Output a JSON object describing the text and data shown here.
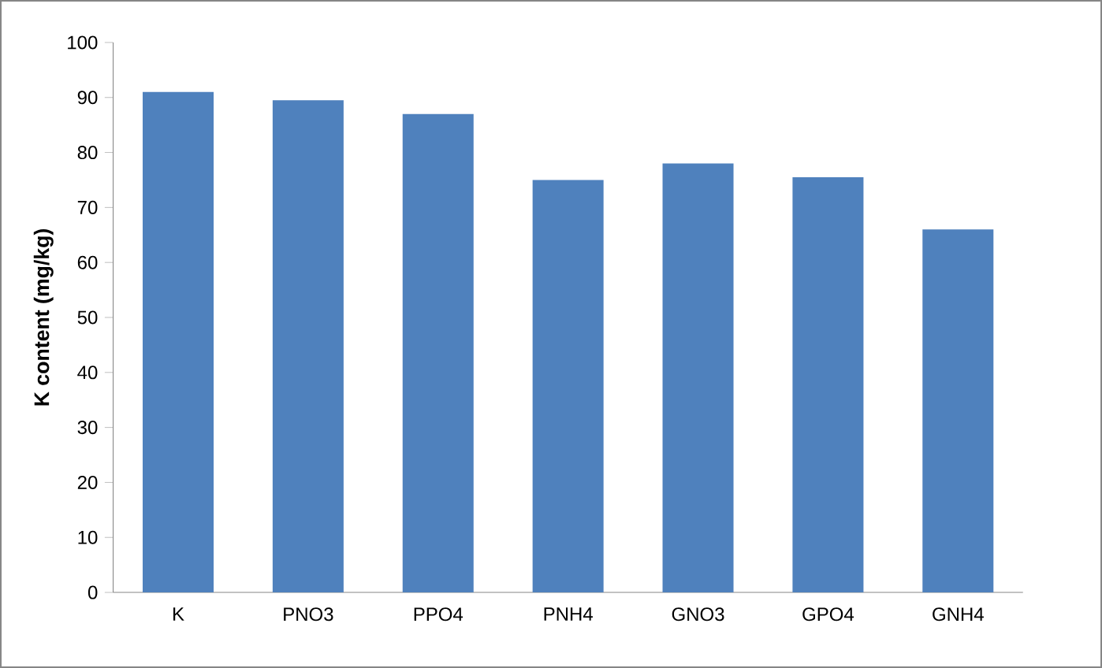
{
  "chart_data": {
    "type": "bar",
    "ylabel": "K content (mg/kg)",
    "categories": [
      "K",
      "PNO3",
      "PPO4",
      "PNH4",
      "GNO3",
      "GPO4",
      "GNH4"
    ],
    "values": [
      91,
      89.5,
      87,
      75,
      78,
      75.5,
      66
    ],
    "color": "#4f81bd",
    "ylim": [
      0,
      100
    ],
    "yticks": [
      0,
      10,
      20,
      30,
      40,
      50,
      60,
      70,
      80,
      90,
      100
    ]
  }
}
